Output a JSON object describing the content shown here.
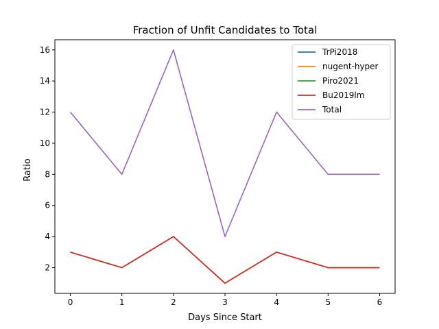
{
  "chart_data": {
    "type": "line",
    "title": "Fraction of Unfit Candidates to Total",
    "xlabel": "Days Since Start",
    "ylabel": "Ratio",
    "x": [
      0,
      1,
      2,
      3,
      4,
      5,
      6
    ],
    "xlim": [
      -0.3,
      6.3
    ],
    "ylim": [
      0.35,
      16.65
    ],
    "xticks": [
      "0",
      "1",
      "2",
      "3",
      "4",
      "5",
      "6"
    ],
    "yticks": [
      "2",
      "4",
      "6",
      "8",
      "10",
      "12",
      "14",
      "16"
    ],
    "grid": false,
    "legend_position": "top-right",
    "series": [
      {
        "name": "TrPi2018",
        "color": "#1f77b4",
        "values": [
          3,
          2,
          4,
          1,
          3,
          2,
          2
        ]
      },
      {
        "name": "nugent-hyper",
        "color": "#ff7f0e",
        "values": [
          3,
          2,
          4,
          1,
          3,
          2,
          2
        ]
      },
      {
        "name": "Piro2021",
        "color": "#2ca02c",
        "values": [
          3,
          2,
          4,
          1,
          3,
          2,
          2
        ]
      },
      {
        "name": "Bu2019lm",
        "color": "#d62728",
        "values": [
          3,
          2,
          4,
          1,
          3,
          2,
          2
        ]
      },
      {
        "name": "Total",
        "color": "#9467bd",
        "values": [
          12,
          8,
          16,
          4,
          12,
          8,
          8
        ]
      }
    ]
  }
}
